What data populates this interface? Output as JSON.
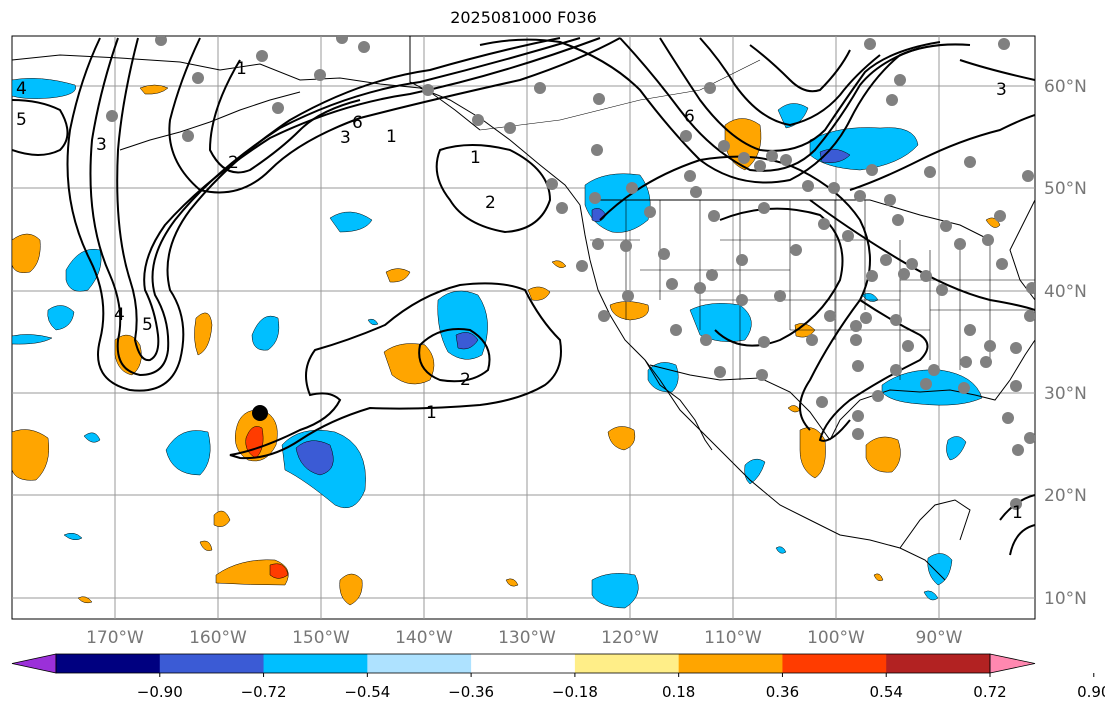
{
  "title": "2025081000 F036",
  "lon_labels": [
    "170°W",
    "160°W",
    "150°W",
    "140°W",
    "130°W",
    "120°W",
    "110°W",
    "100°W",
    "90°W"
  ],
  "lat_labels": [
    "60°N",
    "50°N",
    "40°N",
    "30°N",
    "20°N",
    "10°N"
  ],
  "contour_labels": [
    "1",
    "2",
    "3",
    "4",
    "5",
    "6",
    "6",
    "5",
    "4",
    "3",
    "1",
    "1",
    "2",
    "2",
    "1",
    "3",
    "1"
  ],
  "colorbar": {
    "tick_labels": [
      "−0.90",
      "−0.72",
      "−0.54",
      "−0.36",
      "−0.18",
      "0.18",
      "0.36",
      "0.54",
      "0.72",
      "0.90"
    ],
    "colors": [
      "#9b30d9",
      "#000080",
      "#3b5bd5",
      "#00bfff",
      "#aee2ff",
      "#ffffff",
      "#ffee88",
      "#ffa500",
      "#ff3c00",
      "#b22222",
      "#ff88b0"
    ]
  },
  "colors": {
    "land": "#ffffff",
    "ocean": "#ffffff",
    "grid": "#999999",
    "station_dot": "#808080",
    "axis_label": "#777777"
  }
}
